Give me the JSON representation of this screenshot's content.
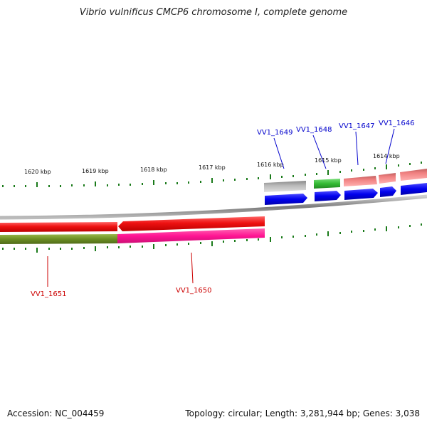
{
  "title": "Vibrio vulnificus CMCP6 chromosome I, complete genome",
  "accession_label": "Accession: NC_004459",
  "stats_label": "Topology: circular; Length: 3,281,944 bp; Genes: 3,038",
  "ruler": {
    "labels": [
      "1620 kbp",
      "1619 kbp",
      "1618 kbp",
      "1617 kbp",
      "1616 kbp",
      "1615 kbp",
      "1614 kbp"
    ]
  },
  "genes": {
    "forward": [
      {
        "label": "VV1_1649",
        "color": "#0000cc"
      },
      {
        "label": "VV1_1648",
        "color": "#0000cc"
      },
      {
        "label": "VV1_1647",
        "color": "#0000cc"
      },
      {
        "label": "VV1_1646",
        "color": "#0000cc"
      }
    ],
    "reverse": [
      {
        "label": "VV1_1651",
        "color": "#cc0000"
      },
      {
        "label": "VV1_1650",
        "color": "#cc0000"
      }
    ]
  },
  "colors": {
    "backbone": "#8c8c8c",
    "tick": "#1a7a1a",
    "cds_red": "#ee1111",
    "olive": "#6b8e23",
    "magenta": "#ff1493",
    "blue": "#0000ee",
    "green": "#33bb33",
    "pink": "#f08080",
    "gray": "#b0b0b0"
  }
}
